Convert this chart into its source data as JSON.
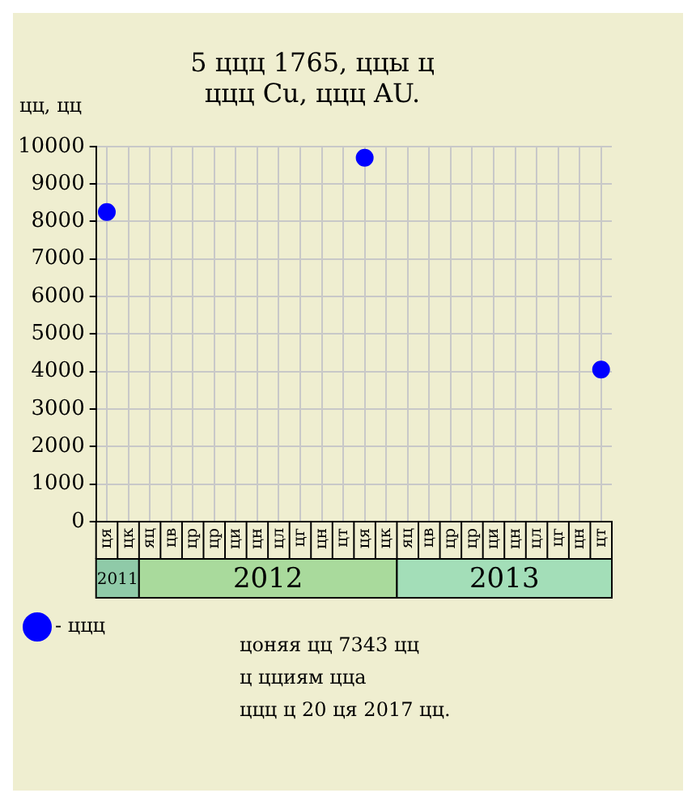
{
  "chart_data": {
    "type": "scatter",
    "title": [
      "5 ццц 1765, ццы ц",
      "ццц Cu, ццц AU."
    ],
    "ylabel": "цц, цц",
    "categories": [
      "ця",
      "цк",
      "яц",
      "цв",
      "цр",
      "цр",
      "ци",
      "цн",
      "цл",
      "цг",
      "цн",
      "цт",
      "ця",
      "цк",
      "яц",
      "цв",
      "цр",
      "цр",
      "ци",
      "цн",
      "цл",
      "цг",
      "цн",
      "цт"
    ],
    "series": [
      {
        "name": "- ццц",
        "color": "#0000ff",
        "values": [
          8250,
          null,
          null,
          null,
          null,
          null,
          null,
          null,
          null,
          null,
          null,
          null,
          9700,
          null,
          null,
          null,
          null,
          null,
          null,
          null,
          null,
          null,
          null,
          4050
        ]
      }
    ],
    "ylim": [
      0,
      10000
    ],
    "yticks": [
      0,
      1000,
      2000,
      3000,
      4000,
      5000,
      6000,
      7000,
      8000,
      9000,
      10000
    ],
    "grid": true,
    "legend": "bottom left",
    "marker": "circle",
    "annotations": [
      "2011",
      "2012",
      "2013",
      "цоняя цц 7343 цц",
      "ц цциям цца",
      "ццц ц 20 ця 2017 цц."
    ]
  }
}
